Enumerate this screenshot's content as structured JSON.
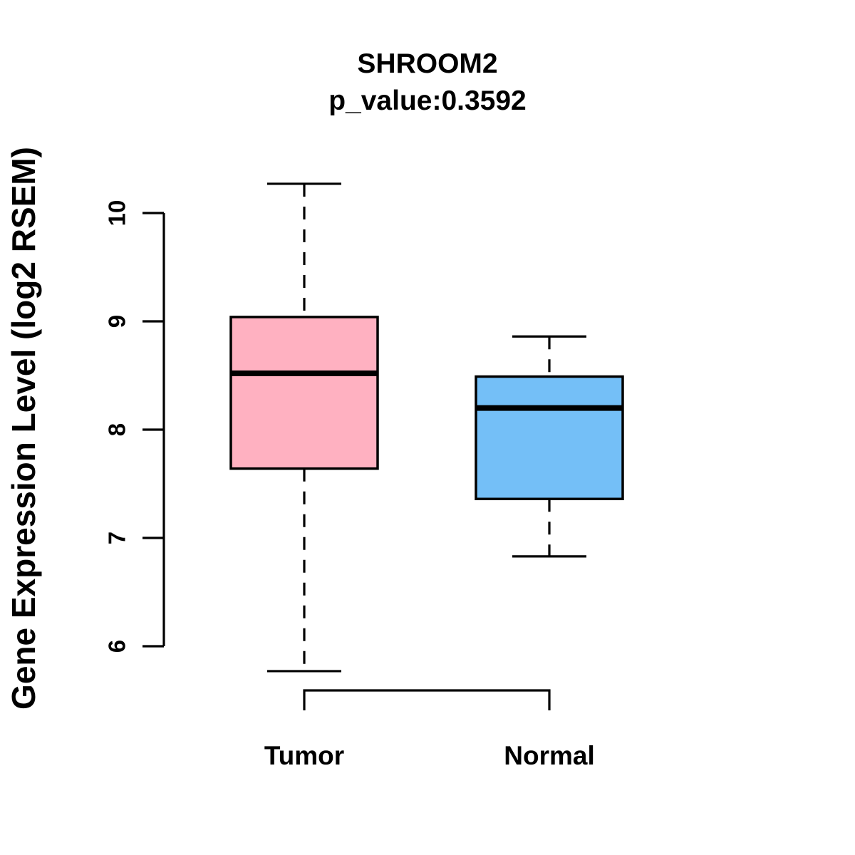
{
  "chart_data": {
    "type": "boxplot",
    "title": "SHROOM2",
    "subtitle": "p_value:0.3592",
    "ylabel": "Gene Expression Level (log2 RSEM)",
    "xlabel": "",
    "ylim": [
      6,
      10
    ],
    "yticks": [
      "6",
      "7",
      "8",
      "9",
      "10"
    ],
    "ytick_values": [
      6,
      7,
      8,
      9,
      10
    ],
    "grid": false,
    "legend": "none",
    "orientation": "vertical",
    "background_color": "#FFFFFF",
    "line_color": "#000000",
    "groups": [
      {
        "label": "Tumor",
        "box_color": "#FFB1C1",
        "whisker_low": 5.77,
        "q1": 7.64,
        "median": 8.52,
        "q3": 9.04,
        "whisker_high": 10.27
      },
      {
        "label": "Normal",
        "box_color": "#74BFF7",
        "whisker_low": 6.83,
        "q1": 7.36,
        "median": 8.2,
        "q3": 8.49,
        "whisker_high": 8.86
      }
    ]
  }
}
